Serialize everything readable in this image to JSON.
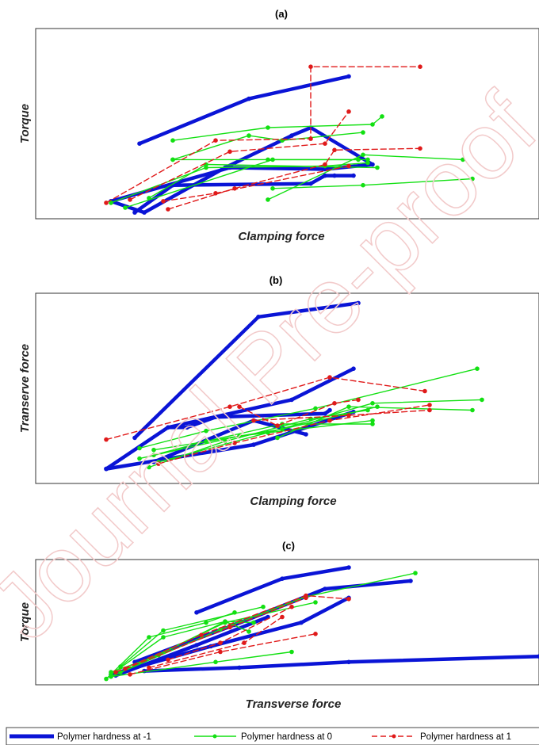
{
  "watermark": {
    "text": "Journal Pre-proof",
    "color": "#f2caca"
  },
  "legend_entries": [
    {
      "label": "Polymer hardness at -1",
      "color": "#0a14d6"
    },
    {
      "label": "Polymer hardness at 0",
      "color": "#12e012"
    },
    {
      "label": "Polymer hardness at 1",
      "color": "#e01a1a"
    }
  ],
  "chart_data": [
    {
      "type": "line",
      "title": "(a)",
      "xlabel": "Clamping force",
      "ylabel": "Torque",
      "xlim": [
        0,
        100
      ],
      "ylim": [
        0,
        100
      ],
      "grid": false,
      "legend": "bottom",
      "series": [
        {
          "name": "Polymer hardness at -1",
          "color": "#0a14d6",
          "style": "solid-thick",
          "lines": [
            [
              [
                16,
                40
              ],
              [
                39,
                68
              ],
              [
                60,
                82
              ]
            ],
            [
              [
                10,
                4
              ],
              [
                35,
                25
              ],
              [
                55,
                24
              ],
              [
                65,
                27
              ],
              [
                52,
                50
              ],
              [
                48,
                45
              ],
              [
                34,
                25
              ],
              [
                17,
                -3
              ],
              [
                10,
                4
              ]
            ],
            [
              [
                15,
                -3
              ],
              [
                23,
                14
              ],
              [
                52,
                15
              ],
              [
                55,
                20
              ],
              [
                57,
                20
              ],
              [
                61,
                20
              ]
            ]
          ]
        },
        {
          "name": "Polymer hardness at 0",
          "color": "#12e012",
          "style": "solid",
          "lines": [
            [
              [
                10,
                3
              ],
              [
                30,
                25
              ],
              [
                55,
                26
              ],
              [
                64,
                28
              ]
            ],
            [
              [
                23,
                30
              ],
              [
                43,
                30
              ],
              [
                62,
                30
              ]
            ],
            [
              [
                23,
                42
              ],
              [
                43,
                50
              ],
              [
                65,
                52
              ],
              [
                67,
                57
              ]
            ],
            [
              [
                23,
                30
              ],
              [
                39,
                45
              ],
              [
                46,
                42
              ],
              [
                63,
                47
              ]
            ],
            [
              [
                43,
                5
              ],
              [
                63,
                33
              ],
              [
                84,
                30
              ]
            ],
            [
              [
                44,
                12
              ],
              [
                63,
                14
              ],
              [
                86,
                18
              ]
            ],
            [
              [
                18,
                6
              ],
              [
                30,
                27
              ],
              [
                66,
                25
              ]
            ],
            [
              [
                13,
                0
              ],
              [
                44,
                30
              ],
              [
                64,
                30
              ]
            ]
          ]
        },
        {
          "name": "Polymer hardness at 1",
          "color": "#e01a1a",
          "style": "dashed",
          "lines": [
            [
              [
                9,
                3
              ],
              [
                32,
                42
              ],
              [
                52,
                43
              ],
              [
                52,
                88
              ],
              [
                75,
                88
              ]
            ],
            [
              [
                22,
                -1
              ],
              [
                36,
                12
              ],
              [
                55,
                27
              ],
              [
                57,
                36
              ],
              [
                75,
                37
              ]
            ],
            [
              [
                21,
                4
              ],
              [
                32,
                9
              ],
              [
                60,
                26
              ]
            ],
            [
              [
                14,
                5
              ],
              [
                35,
                35
              ],
              [
                55,
                40
              ],
              [
                60,
                60
              ]
            ]
          ]
        }
      ]
    },
    {
      "type": "line",
      "title": "(b)",
      "xlabel": "Clamping force",
      "ylabel": "Transerve force",
      "xlim": [
        0,
        100
      ],
      "ylim": [
        0,
        100
      ],
      "grid": false,
      "legend": "bottom",
      "series": [
        {
          "name": "Polymer hardness at -1",
          "color": "#0a14d6",
          "style": "solid-thick",
          "lines": [
            [
              [
                15,
                20
              ],
              [
                41,
                90
              ],
              [
                62,
                98
              ]
            ],
            [
              [
                9,
                2
              ],
              [
                22,
                26
              ],
              [
                48,
                42
              ],
              [
                61,
                60
              ]
            ],
            [
              [
                9,
                2
              ],
              [
                40,
                16
              ],
              [
                61,
                35
              ]
            ],
            [
              [
                22,
                26
              ],
              [
                26,
                26
              ],
              [
                32,
                32
              ],
              [
                55,
                34
              ],
              [
                56,
                36
              ]
            ],
            [
              [
                19,
                6
              ],
              [
                40,
                30
              ],
              [
                51,
                22
              ]
            ]
          ]
        },
        {
          "name": "Polymer hardness at 0",
          "color": "#12e012",
          "style": "solid",
          "lines": [
            [
              [
                16,
                14
              ],
              [
                30,
                24
              ],
              [
                53,
                37
              ],
              [
                87,
                60
              ]
            ],
            [
              [
                19,
                10
              ],
              [
                30,
                18
              ],
              [
                46,
                28
              ],
              [
                65,
                28
              ]
            ],
            [
              [
                16,
                8
              ],
              [
                37,
                21
              ],
              [
                65,
                30
              ]
            ],
            [
              [
                19,
                13
              ],
              [
                46,
                25
              ],
              [
                66,
                38
              ]
            ],
            [
              [
                20,
                6
              ],
              [
                43,
                23
              ],
              [
                65,
                40
              ],
              [
                88,
                42
              ]
            ],
            [
              [
                18,
                3
              ],
              [
                34,
                18
              ],
              [
                52,
                31
              ],
              [
                64,
                36
              ]
            ],
            [
              [
                45,
                20
              ],
              [
                60,
                38
              ],
              [
                86,
                36
              ]
            ]
          ]
        },
        {
          "name": "Polymer hardness at 1",
          "color": "#e01a1a",
          "style": "dashed",
          "lines": [
            [
              [
                9,
                19
              ],
              [
                35,
                38
              ],
              [
                56,
                55
              ],
              [
                76,
                47
              ]
            ],
            [
              [
                20,
                5
              ],
              [
                36,
                17
              ],
              [
                56,
                30
              ],
              [
                77,
                39
              ]
            ],
            [
              [
                37,
                38
              ],
              [
                45,
                27
              ],
              [
                57,
                40
              ],
              [
                62,
                42
              ]
            ],
            [
              [
                40,
                30
              ],
              [
                60,
                33
              ],
              [
                77,
                36
              ]
            ]
          ]
        }
      ]
    },
    {
      "type": "line",
      "title": "(c)",
      "xlabel": "Transverse force",
      "ylabel": "Torque",
      "xlim": [
        0,
        100
      ],
      "ylim": [
        0,
        100
      ],
      "grid": false,
      "legend": "bottom",
      "series": [
        {
          "name": "Polymer hardness at -1",
          "color": "#0a14d6",
          "style": "solid-thick",
          "lines": [
            [
              [
                15,
                16
              ],
              [
                36,
                49
              ],
              [
                55,
                81
              ],
              [
                73,
                88
              ]
            ],
            [
              [
                17,
                8
              ],
              [
                37,
                11
              ],
              [
                60,
                16
              ],
              [
                100,
                21
              ]
            ],
            [
              [
                10,
                5
              ],
              [
                31,
                30
              ],
              [
                50,
                51
              ],
              [
                60,
                73
              ]
            ],
            [
              [
                11,
                4
              ],
              [
                28,
                31
              ],
              [
                43,
                56
              ]
            ],
            [
              [
                28,
                60
              ],
              [
                46,
                90
              ],
              [
                60,
                100
              ]
            ]
          ]
        },
        {
          "name": "Polymer hardness at 0",
          "color": "#12e012",
          "style": "solid",
          "lines": [
            [
              [
                10,
                3
              ],
              [
                33,
                45
              ],
              [
                51,
                74
              ],
              [
                74,
                95
              ]
            ],
            [
              [
                10,
                5
              ],
              [
                21,
                38
              ],
              [
                34,
                52
              ],
              [
                40,
                51
              ]
            ],
            [
              [
                9,
                1
              ],
              [
                18,
                38
              ],
              [
                30,
                51
              ],
              [
                36,
                60
              ]
            ],
            [
              [
                10,
                7
              ],
              [
                20,
                22
              ],
              [
                34,
                52
              ],
              [
                39,
                43
              ]
            ],
            [
              [
                12,
                12
              ],
              [
                21,
                44
              ],
              [
                42,
                65
              ]
            ],
            [
              [
                10,
                3
              ],
              [
                32,
                16
              ],
              [
                48,
                25
              ]
            ],
            [
              [
                12,
                7
              ],
              [
                34,
                51
              ],
              [
                53,
                69
              ]
            ]
          ]
        },
        {
          "name": "Polymer hardness at 1",
          "color": "#e01a1a",
          "style": "dashed",
          "lines": [
            [
              [
                11,
                7
              ],
              [
                29,
                40
              ],
              [
                51,
                75
              ],
              [
                60,
                72
              ]
            ],
            [
              [
                14,
                5
              ],
              [
                33,
                25
              ],
              [
                53,
                41
              ]
            ],
            [
              [
                18,
                11
              ],
              [
                38,
                33
              ],
              [
                46,
                56
              ]
            ],
            [
              [
                13,
                10
              ],
              [
                35,
                47
              ],
              [
                51,
                73
              ]
            ],
            [
              [
                22,
                18
              ],
              [
                33,
                33
              ],
              [
                48,
                65
              ]
            ]
          ]
        }
      ]
    }
  ]
}
